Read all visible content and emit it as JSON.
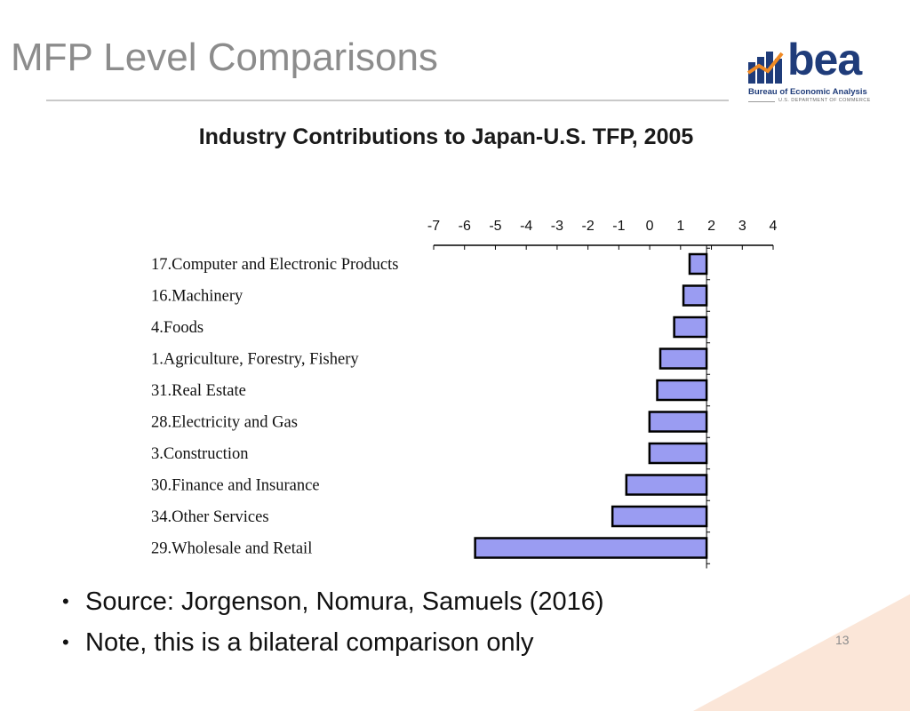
{
  "slide": {
    "title": "MFP Level Comparisons",
    "page_number": "13",
    "accent_color": "#f9dcc8"
  },
  "logo": {
    "word": "bea",
    "name": "Bureau of Economic Analysis",
    "department": "U.S. DEPARTMENT OF COMMERCE",
    "primary_color": "#1f3c7a",
    "accent_color": "#f08a24",
    "icon": "bar-chart-logo-icon"
  },
  "chart_data": {
    "type": "bar",
    "orientation": "horizontal",
    "title": "Industry Contributions to Japan-U.S. TFP, 2005",
    "categories": [
      "17.Computer and Electronic Products",
      "16.Machinery",
      "4.Foods",
      "1.Agriculture, Forestry, Fishery",
      "31.Real Estate",
      "28.Electricity and Gas",
      "3.Construction",
      "30.Finance and Insurance",
      "34.Other Services",
      "29.Wholesale and Retail"
    ],
    "values": [
      -0.55,
      -0.75,
      -1.05,
      -1.5,
      -1.6,
      -1.85,
      -1.85,
      -2.6,
      -3.05,
      -7.5
    ],
    "xlim": [
      -7,
      4
    ],
    "xticks": [
      "-7",
      "-6",
      "-5",
      "-4",
      "-3",
      "-2",
      "-1",
      "0",
      "1",
      "2",
      "3",
      "4"
    ],
    "axis_position": "top",
    "bar_color": "#9a9cf2",
    "bar_edge_color": "#000000",
    "grid": false,
    "legend": "none"
  },
  "bullets": [
    "Source: Jorgenson, Nomura, Samuels (2016)",
    "Note, this is a bilateral comparison only"
  ]
}
